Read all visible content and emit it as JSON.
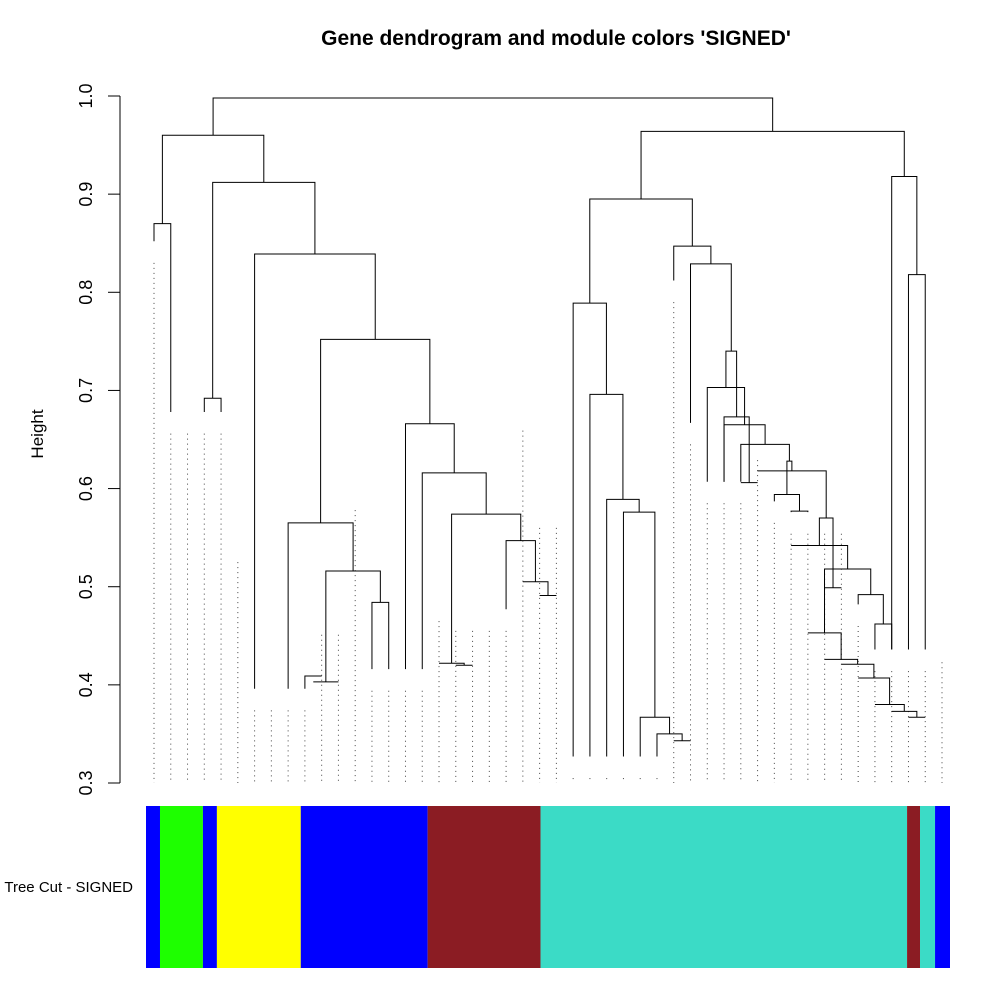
{
  "chart_data": {
    "type": "dendrogram",
    "title": "Gene dendrogram and module colors 'SIGNED'",
    "ylabel": "Height",
    "xlabel": "",
    "ylim": [
      0.3,
      1.0
    ],
    "yticks": [
      "0.3",
      "0.4",
      "0.5",
      "0.6",
      "0.7",
      "0.8",
      "0.9",
      "1.0"
    ],
    "grid": false,
    "n_leaves": 48,
    "colorbar_label": "Tree Cut - SIGNED",
    "module_colors": {
      "blue": "#0000FF",
      "green": "#1EFF00",
      "yellow": "#FFFF00",
      "brown": "#8B1C23",
      "turquoise": "#3BDBC6"
    },
    "nodes": [
      {
        "id": "n1",
        "a": 1,
        "b": 2,
        "h": 0.87
      },
      {
        "id": "n2",
        "a": 4,
        "b": 5,
        "h": 0.692
      },
      {
        "id": "n3",
        "a": 10,
        "b": 11,
        "h": 0.409
      },
      {
        "id": "n4",
        "a": "n3",
        "b": 12,
        "h": 0.403
      },
      {
        "id": "n5",
        "a": 14,
        "b": 15,
        "h": 0.484
      },
      {
        "id": "n6",
        "a": "n4",
        "b": "n5",
        "h": 0.516
      },
      {
        "id": "n7",
        "a": 9,
        "b": "n6",
        "h": 0.565
      },
      {
        "id": "n8",
        "a": 19,
        "b": 20,
        "h": 0.42
      },
      {
        "id": "n9",
        "a": 18,
        "b": "n8",
        "h": 0.422
      },
      {
        "id": "n10",
        "a": 24,
        "b": 25,
        "h": 0.491
      },
      {
        "id": "n11",
        "a": 23,
        "b": "n10",
        "h": 0.505
      },
      {
        "id": "n12",
        "a": 22,
        "b": "n11",
        "h": 0.547
      },
      {
        "id": "n13",
        "a": "n9",
        "b": "n12",
        "h": 0.574
      },
      {
        "id": "n14",
        "a": 17,
        "b": "n13",
        "h": 0.616
      },
      {
        "id": "n15",
        "a": 16,
        "b": "n14",
        "h": 0.666
      },
      {
        "id": "n16",
        "a": "n7",
        "b": "n15",
        "h": 0.752
      },
      {
        "id": "n17",
        "a": 7,
        "b": "n16",
        "h": 0.839
      },
      {
        "id": "n18",
        "a": "n2",
        "b": "n17",
        "h": 0.912
      },
      {
        "id": "n19",
        "a": "n1",
        "b": "n18",
        "h": 0.96
      },
      {
        "id": "n20",
        "a": 32,
        "b": 33,
        "h": 0.343
      },
      {
        "id": "n21",
        "a": 31,
        "b": "n20",
        "h": 0.35
      },
      {
        "id": "n22",
        "a": 30,
        "b": "n21",
        "h": 0.367
      },
      {
        "id": "n23",
        "a": 29,
        "b": "n22",
        "h": 0.576
      },
      {
        "id": "n24",
        "a": 28,
        "b": "n23",
        "h": 0.589
      },
      {
        "id": "n25",
        "a": 27,
        "b": "n24",
        "h": 0.696
      },
      {
        "id": "n26",
        "a": 26,
        "b": "n25",
        "h": 0.789
      },
      {
        "id": "n27",
        "a": 36,
        "b": 37,
        "h": 0.606
      },
      {
        "id": "n28",
        "a": 35,
        "b": "n27",
        "h": 0.673
      },
      {
        "id": "n29",
        "a": 39,
        "b": 40,
        "h": 0.577
      },
      {
        "id": "n30",
        "a": 38,
        "b": "n29",
        "h": 0.594
      },
      {
        "id": "n31",
        "a": 41,
        "b": 42,
        "h": 0.499
      },
      {
        "id": "n32",
        "a": 46,
        "b": 47,
        "h": 0.367
      },
      {
        "id": "n33",
        "a": 45,
        "b": "n32",
        "h": 0.373
      },
      {
        "id": "n34",
        "a": 44,
        "b": "n33",
        "h": 0.38
      },
      {
        "id": "n35",
        "a": 43,
        "b": "n34",
        "h": 0.407
      },
      {
        "id": "n36",
        "a": 42,
        "b": "n35",
        "h": 0.421
      },
      {
        "id": "n37",
        "a": 41,
        "b": "n36",
        "h": 0.426
      },
      {
        "id": "n38",
        "a": 40,
        "b": "n37",
        "h": 0.453
      },
      {
        "id": "n39",
        "a": 44,
        "b": 45,
        "h": 0.462
      },
      {
        "id": "n40",
        "a": 43,
        "b": "n39",
        "h": 0.492
      },
      {
        "id": "n41",
        "a": "n38",
        "b": "n40",
        "h": 0.518
      },
      {
        "id": "n42",
        "a": 39,
        "b": "n41",
        "h": 0.542
      },
      {
        "id": "n43",
        "a": "n31",
        "b": "n42",
        "h": 0.57
      },
      {
        "id": "n44",
        "a": 37,
        "b": "n43",
        "h": 0.618
      },
      {
        "id": "n45",
        "a": "n30",
        "b": "n44",
        "h": 0.628
      },
      {
        "id": "n46",
        "a": 36,
        "b": "n45",
        "h": 0.645
      },
      {
        "id": "n47",
        "a": 35,
        "b": "n46",
        "h": 0.665
      },
      {
        "id": "n48",
        "a": 34,
        "b": "n47",
        "h": 0.703
      },
      {
        "id": "n49",
        "a": "n28",
        "b": "n48",
        "h": 0.74
      },
      {
        "id": "n50",
        "a": 33,
        "b": "n49",
        "h": 0.829
      },
      {
        "id": "n51",
        "a": 32,
        "b": "n50",
        "h": 0.847
      },
      {
        "id": "n52",
        "a": "n26",
        "b": "n51",
        "h": 0.895
      },
      {
        "id": "n53",
        "a": 46,
        "b": 47,
        "h": 0.818
      },
      {
        "id": "n54",
        "a": 45,
        "b": "n53",
        "h": 0.918
      },
      {
        "id": "n55",
        "a": "n52",
        "b": "n54",
        "h": 0.964
      },
      {
        "id": "n56",
        "a": "n19",
        "b": "n55",
        "h": 0.998
      }
    ],
    "leaf_heights": [
      0.83,
      0.656,
      0.656,
      0.656,
      0.656,
      0.525,
      0.374,
      0.374,
      0.374,
      0.374,
      0.451,
      0.451,
      0.578,
      0.394,
      0.394,
      0.394,
      0.394,
      0.465,
      0.455,
      0.455,
      0.455,
      0.455,
      0.659,
      0.56,
      0.56,
      0.305,
      0.305,
      0.305,
      0.305,
      0.305,
      0.305,
      0.79,
      0.645,
      0.585,
      0.585,
      0.585,
      0.629,
      0.565,
      0.554,
      0.554,
      0.554,
      0.554,
      0.46,
      0.414,
      0.414,
      0.414,
      0.414,
      0.423
    ],
    "color_bar": [
      {
        "color": "blue",
        "from": 0,
        "to": 0.0174
      },
      {
        "color": "green",
        "from": 0.0174,
        "to": 0.0708
      },
      {
        "color": "blue",
        "from": 0.0708,
        "to": 0.0882
      },
      {
        "color": "yellow",
        "from": 0.0882,
        "to": 0.1925
      },
      {
        "color": "blue",
        "from": 0.1925,
        "to": 0.3503
      },
      {
        "color": "brown",
        "from": 0.3503,
        "to": 0.4907
      },
      {
        "color": "turquoise",
        "from": 0.4907,
        "to": 0.9466
      },
      {
        "color": "brown",
        "from": 0.9466,
        "to": 0.9627
      },
      {
        "color": "turquoise",
        "from": 0.9627,
        "to": 0.9814
      },
      {
        "color": "blue",
        "from": 0.9814,
        "to": 1
      }
    ]
  }
}
